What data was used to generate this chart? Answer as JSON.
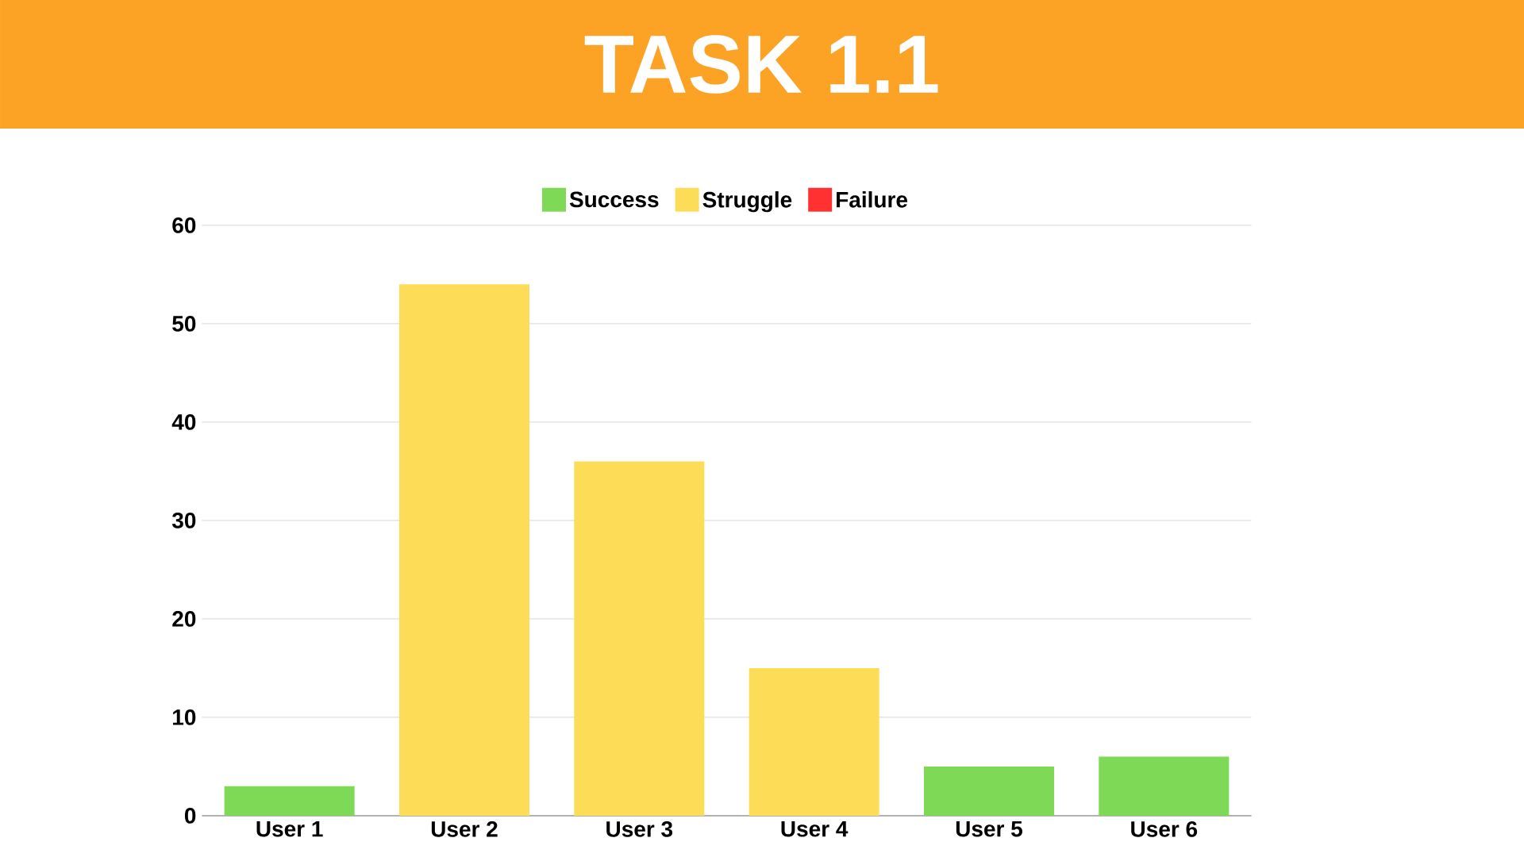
{
  "chart_data": {
    "type": "bar",
    "title": "TASK 1.1",
    "categories": [
      "User 1",
      "User 2",
      "User 3",
      "User 4",
      "User 5",
      "User 6"
    ],
    "series": [
      {
        "name": "Success",
        "color": "#7ed957",
        "values": [
          3,
          null,
          null,
          null,
          5,
          6
        ]
      },
      {
        "name": "Struggle",
        "color": "#fddc58",
        "values": [
          null,
          54,
          36,
          15,
          null,
          null
        ]
      },
      {
        "name": "Failure",
        "color": "#ff3131",
        "values": [
          null,
          null,
          null,
          null,
          null,
          null
        ]
      }
    ],
    "ylim": [
      0,
      60
    ],
    "yticks": [
      0,
      10,
      20,
      30,
      40,
      50,
      60
    ],
    "grid": "y",
    "legend": "top"
  }
}
